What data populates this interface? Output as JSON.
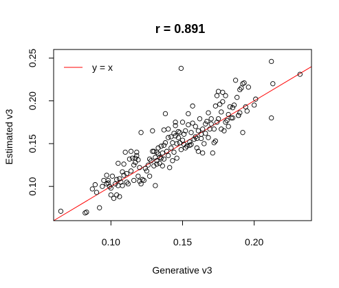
{
  "chart_data": {
    "type": "scatter",
    "title": "r = 0.891",
    "xlabel": "Generative v3",
    "ylabel": "Estimated v3",
    "xlim": [
      0.06,
      0.24
    ],
    "ylim": [
      0.06,
      0.26
    ],
    "xticks": [
      0.1,
      0.15,
      0.2
    ],
    "xtick_labels": [
      "0.10",
      "0.15",
      "0.20"
    ],
    "yticks": [
      0.1,
      0.15,
      0.2,
      0.25
    ],
    "ytick_labels": [
      "0.10",
      "0.15",
      "0.20",
      "0.25"
    ],
    "grid": false,
    "legend": {
      "position": "top-left",
      "entries": [
        {
          "label": "y = x",
          "color": "#ff0000"
        }
      ]
    },
    "reference_line": {
      "slope": 1,
      "intercept": 0,
      "color": "#ff0000"
    },
    "point_color": "#000000",
    "points": [
      [
        0.065,
        0.071
      ],
      [
        0.082,
        0.069
      ],
      [
        0.083,
        0.07
      ],
      [
        0.087,
        0.097
      ],
      [
        0.089,
        0.102
      ],
      [
        0.09,
        0.093
      ],
      [
        0.092,
        0.075
      ],
      [
        0.094,
        0.1
      ],
      [
        0.095,
        0.107
      ],
      [
        0.097,
        0.113
      ],
      [
        0.097,
        0.103
      ],
      [
        0.098,
        0.107
      ],
      [
        0.098,
        0.104
      ],
      [
        0.099,
        0.1
      ],
      [
        0.1,
        0.09
      ],
      [
        0.1,
        0.098
      ],
      [
        0.101,
        0.112
      ],
      [
        0.102,
        0.086
      ],
      [
        0.103,
        0.103
      ],
      [
        0.104,
        0.09
      ],
      [
        0.104,
        0.108
      ],
      [
        0.105,
        0.127
      ],
      [
        0.105,
        0.101
      ],
      [
        0.106,
        0.088
      ],
      [
        0.106,
        0.109
      ],
      [
        0.107,
        0.105
      ],
      [
        0.108,
        0.117
      ],
      [
        0.108,
        0.101
      ],
      [
        0.109,
        0.113
      ],
      [
        0.109,
        0.126
      ],
      [
        0.11,
        0.14
      ],
      [
        0.111,
        0.105
      ],
      [
        0.111,
        0.115
      ],
      [
        0.112,
        0.103
      ],
      [
        0.113,
        0.132
      ],
      [
        0.114,
        0.141
      ],
      [
        0.114,
        0.118
      ],
      [
        0.115,
        0.133
      ],
      [
        0.116,
        0.107
      ],
      [
        0.116,
        0.125
      ],
      [
        0.117,
        0.128
      ],
      [
        0.117,
        0.133
      ],
      [
        0.118,
        0.14
      ],
      [
        0.118,
        0.136
      ],
      [
        0.119,
        0.131
      ],
      [
        0.119,
        0.112
      ],
      [
        0.12,
        0.106
      ],
      [
        0.12,
        0.122
      ],
      [
        0.121,
        0.163
      ],
      [
        0.121,
        0.103
      ],
      [
        0.122,
        0.108
      ],
      [
        0.123,
        0.107
      ],
      [
        0.124,
        0.121
      ],
      [
        0.125,
        0.118
      ],
      [
        0.126,
        0.125
      ],
      [
        0.127,
        0.132
      ],
      [
        0.127,
        0.112
      ],
      [
        0.128,
        0.13
      ],
      [
        0.129,
        0.165
      ],
      [
        0.129,
        0.141
      ],
      [
        0.13,
        0.124
      ],
      [
        0.13,
        0.141
      ],
      [
        0.131,
        0.134
      ],
      [
        0.131,
        0.101
      ],
      [
        0.132,
        0.13
      ],
      [
        0.132,
        0.126
      ],
      [
        0.132,
        0.14
      ],
      [
        0.133,
        0.145
      ],
      [
        0.133,
        0.138
      ],
      [
        0.134,
        0.134
      ],
      [
        0.134,
        0.127
      ],
      [
        0.135,
        0.147
      ],
      [
        0.135,
        0.133
      ],
      [
        0.136,
        0.124
      ],
      [
        0.136,
        0.139
      ],
      [
        0.137,
        0.148
      ],
      [
        0.137,
        0.132
      ],
      [
        0.137,
        0.166
      ],
      [
        0.138,
        0.185
      ],
      [
        0.138,
        0.151
      ],
      [
        0.139,
        0.141
      ],
      [
        0.14,
        0.157
      ],
      [
        0.14,
        0.167
      ],
      [
        0.14,
        0.136
      ],
      [
        0.141,
        0.122
      ],
      [
        0.142,
        0.158
      ],
      [
        0.142,
        0.145
      ],
      [
        0.143,
        0.13
      ],
      [
        0.143,
        0.151
      ],
      [
        0.144,
        0.162
      ],
      [
        0.144,
        0.14
      ],
      [
        0.145,
        0.175
      ],
      [
        0.145,
        0.159
      ],
      [
        0.145,
        0.171
      ],
      [
        0.146,
        0.15
      ],
      [
        0.146,
        0.133
      ],
      [
        0.147,
        0.157
      ],
      [
        0.147,
        0.164
      ],
      [
        0.148,
        0.151
      ],
      [
        0.148,
        0.163
      ],
      [
        0.149,
        0.238
      ],
      [
        0.149,
        0.143
      ],
      [
        0.15,
        0.154
      ],
      [
        0.15,
        0.175
      ],
      [
        0.151,
        0.161
      ],
      [
        0.151,
        0.149
      ],
      [
        0.152,
        0.165
      ],
      [
        0.152,
        0.145
      ],
      [
        0.153,
        0.147
      ],
      [
        0.154,
        0.172
      ],
      [
        0.154,
        0.185
      ],
      [
        0.155,
        0.152
      ],
      [
        0.155,
        0.148
      ],
      [
        0.156,
        0.163
      ],
      [
        0.156,
        0.149
      ],
      [
        0.157,
        0.174
      ],
      [
        0.157,
        0.194
      ],
      [
        0.158,
        0.155
      ],
      [
        0.159,
        0.17
      ],
      [
        0.159,
        0.158
      ],
      [
        0.16,
        0.156
      ],
      [
        0.16,
        0.145
      ],
      [
        0.161,
        0.141
      ],
      [
        0.161,
        0.165
      ],
      [
        0.162,
        0.179
      ],
      [
        0.163,
        0.156
      ],
      [
        0.163,
        0.161
      ],
      [
        0.164,
        0.139
      ],
      [
        0.164,
        0.167
      ],
      [
        0.165,
        0.15
      ],
      [
        0.166,
        0.173
      ],
      [
        0.166,
        0.162
      ],
      [
        0.167,
        0.176
      ],
      [
        0.168,
        0.157
      ],
      [
        0.168,
        0.186
      ],
      [
        0.169,
        0.167
      ],
      [
        0.17,
        0.173
      ],
      [
        0.17,
        0.179
      ],
      [
        0.171,
        0.139
      ],
      [
        0.172,
        0.167
      ],
      [
        0.172,
        0.151
      ],
      [
        0.173,
        0.153
      ],
      [
        0.173,
        0.194
      ],
      [
        0.174,
        0.206
      ],
      [
        0.174,
        0.175
      ],
      [
        0.175,
        0.179
      ],
      [
        0.175,
        0.211
      ],
      [
        0.176,
        0.196
      ],
      [
        0.177,
        0.167
      ],
      [
        0.177,
        0.187
      ],
      [
        0.178,
        0.21
      ],
      [
        0.178,
        0.199
      ],
      [
        0.179,
        0.165
      ],
      [
        0.18,
        0.175
      ],
      [
        0.18,
        0.206
      ],
      [
        0.181,
        0.177
      ],
      [
        0.182,
        0.184
      ],
      [
        0.182,
        0.17
      ],
      [
        0.183,
        0.193
      ],
      [
        0.184,
        0.18
      ],
      [
        0.185,
        0.192
      ],
      [
        0.185,
        0.18
      ],
      [
        0.186,
        0.195
      ],
      [
        0.187,
        0.224
      ],
      [
        0.188,
        0.204
      ],
      [
        0.189,
        0.183
      ],
      [
        0.189,
        0.183
      ],
      [
        0.19,
        0.213
      ],
      [
        0.19,
        0.186
      ],
      [
        0.191,
        0.215
      ],
      [
        0.192,
        0.163
      ],
      [
        0.192,
        0.22
      ],
      [
        0.193,
        0.221
      ],
      [
        0.194,
        0.193
      ],
      [
        0.195,
        0.188
      ],
      [
        0.196,
        0.216
      ],
      [
        0.2,
        0.195
      ],
      [
        0.201,
        0.202
      ],
      [
        0.212,
        0.246
      ],
      [
        0.212,
        0.18
      ],
      [
        0.213,
        0.22
      ],
      [
        0.232,
        0.231
      ]
    ]
  }
}
